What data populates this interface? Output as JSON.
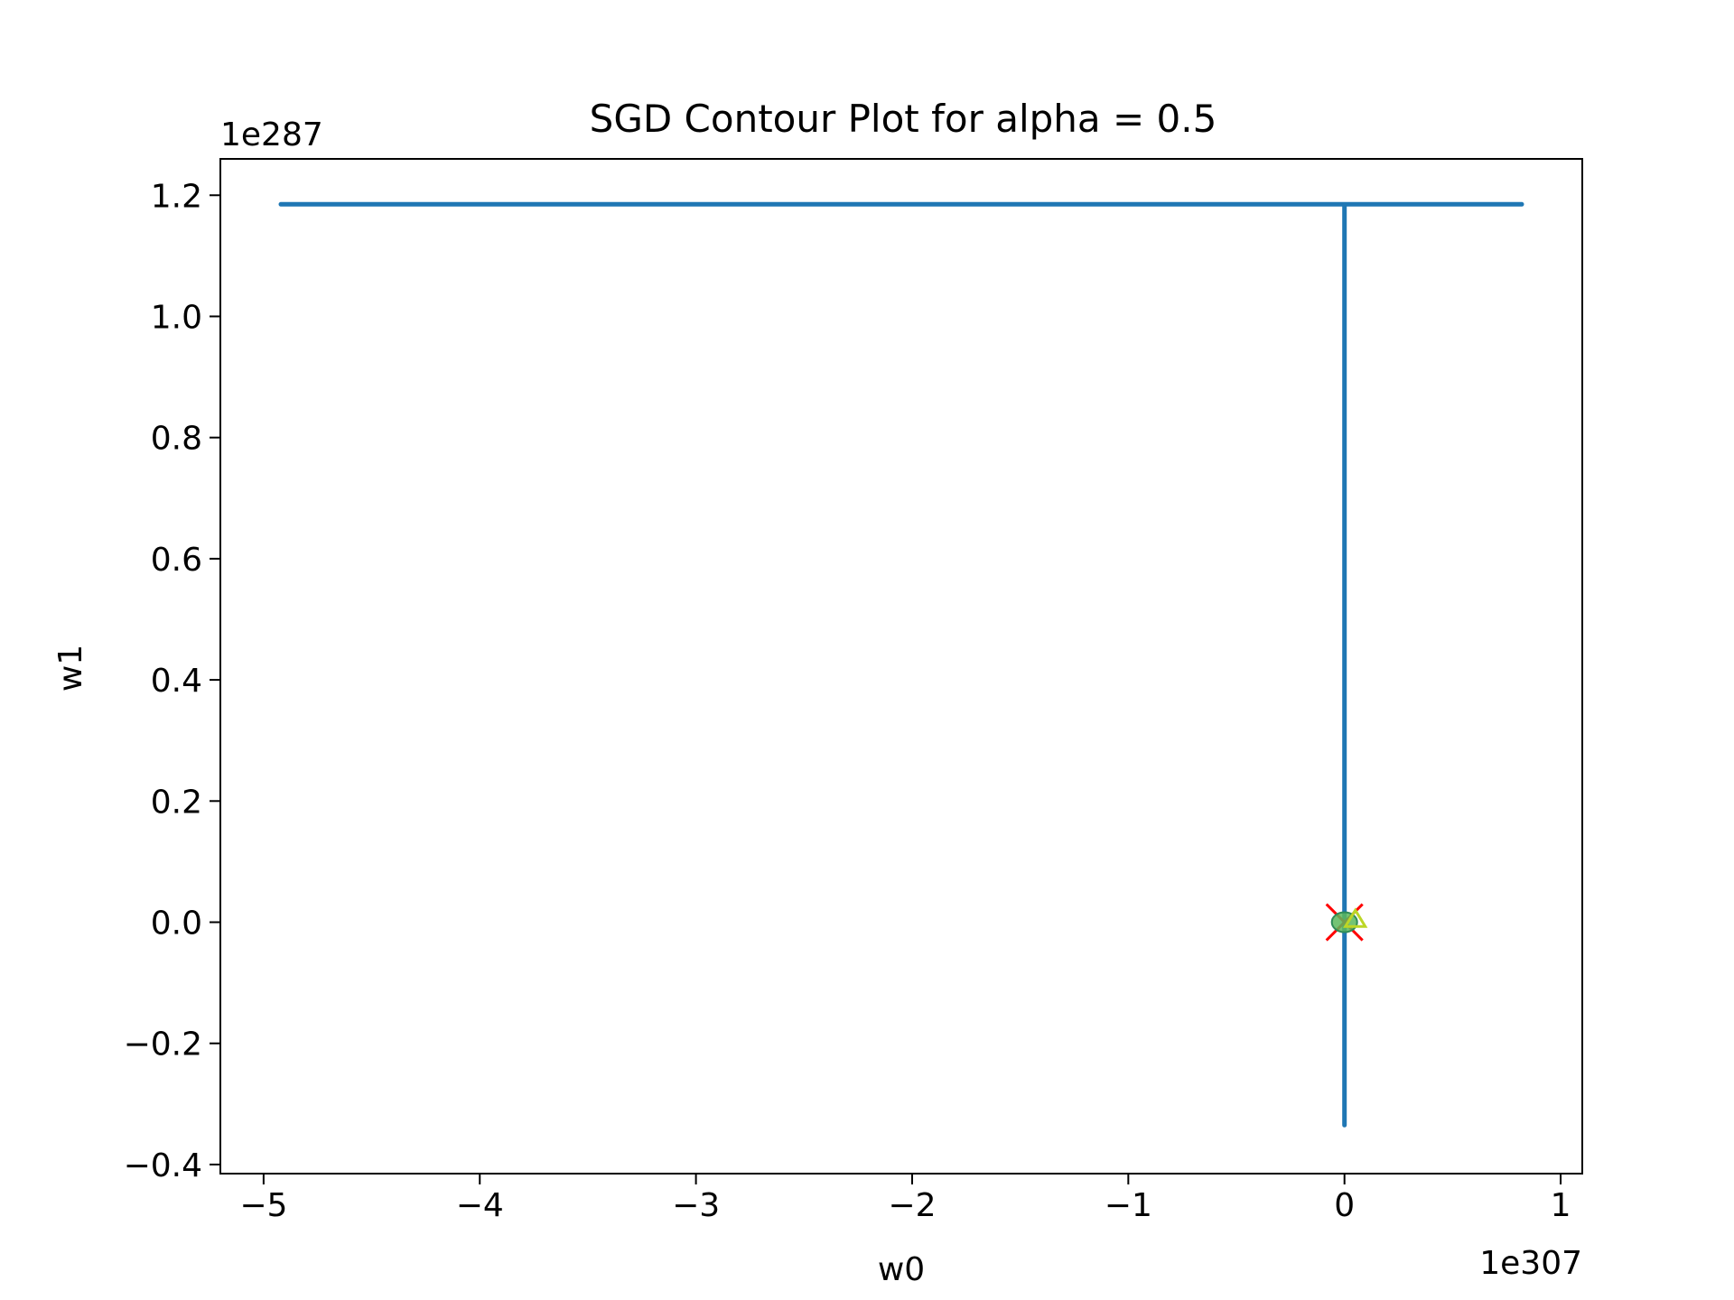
{
  "chart_data": {
    "type": "line",
    "title": "SGD Contour Plot for alpha = 0.5",
    "xlabel": "w0",
    "ylabel": "w1",
    "x_offset_label": "1e307",
    "y_offset_label": "1e287",
    "x_scale_exponent": 307,
    "y_scale_exponent": 287,
    "xlim": [
      -5.2,
      1.1
    ],
    "ylim": [
      -0.415,
      1.26
    ],
    "xticks": [
      -5,
      -4,
      -3,
      -2,
      -1,
      0,
      1
    ],
    "xtick_labels": [
      "−5",
      "−4",
      "−3",
      "−2",
      "−1",
      "0",
      "1"
    ],
    "yticks": [
      -0.4,
      -0.2,
      0.0,
      0.2,
      0.4,
      0.6,
      0.8,
      1.0,
      1.2
    ],
    "ytick_labels": [
      "−0.4",
      "−0.2",
      "0.0",
      "0.2",
      "0.4",
      "0.6",
      "0.8",
      "1.0",
      "1.2"
    ],
    "grid": false,
    "series": [
      {
        "color": "#1f77b4",
        "points": [
          {
            "x": 0.0,
            "y": 0.0
          },
          {
            "x": 0.0,
            "y": -0.335
          },
          {
            "x": 0.0,
            "y": 1.185
          },
          {
            "x": -4.92,
            "y": 1.185
          },
          {
            "x": 0.82,
            "y": 1.185
          }
        ]
      }
    ],
    "markers": [
      {
        "type": "x",
        "x": 0.0,
        "y": 0.0,
        "color": "#ff0000"
      },
      {
        "type": "contour-blob",
        "x": 0.0,
        "y": 0.0,
        "color": "#5cb85c"
      },
      {
        "type": "triangle",
        "x": 0.05,
        "y": 0.005,
        "color": "#bcd626"
      }
    ]
  }
}
